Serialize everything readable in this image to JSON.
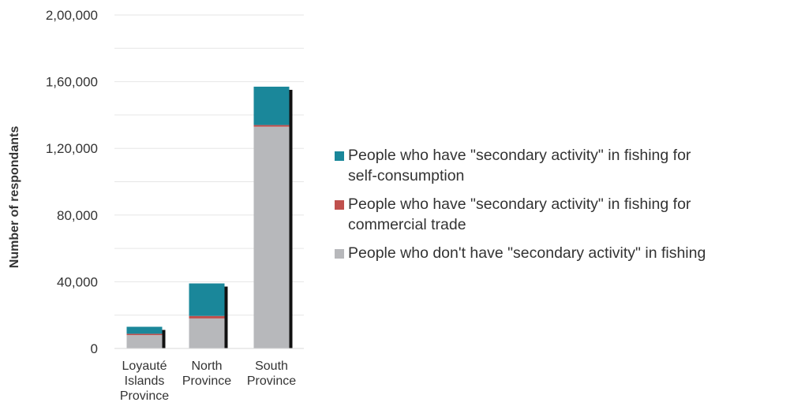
{
  "chart_data": {
    "type": "bar",
    "stacked": true,
    "categories": [
      [
        "Loyauté",
        "Islands",
        "Province"
      ],
      [
        "North",
        "Province"
      ],
      [
        "South",
        "Province"
      ]
    ],
    "series": [
      {
        "name": "People who don't have \"secondary activity\" in fishing",
        "color": "#b7b8bb",
        "values": [
          8000,
          18000,
          133000
        ]
      },
      {
        "name": "People who have \"secondary activity\" in fishing for commercial trade",
        "color": "#c0504d",
        "values": [
          800,
          1500,
          1000
        ]
      },
      {
        "name": "People who have \"secondary activity\" in fishing for self-consumption",
        "color": "#1a879a",
        "values": [
          4200,
          19500,
          23000
        ]
      }
    ],
    "legend_order": [
      2,
      1,
      0
    ],
    "legend_lines": [
      [
        "People who have \"secondary activity\" in fishing for",
        "self-consumption"
      ],
      [
        "People who have \"secondary activity\" in fishing for",
        "commercial trade"
      ],
      [
        "People who don't have \"secondary activity\" in fishing"
      ]
    ],
    "ylabel": "Number of respondants",
    "xlabel": "",
    "ylim": [
      0,
      200000
    ],
    "yticks": [
      0,
      40000,
      80000,
      120000,
      160000,
      200000
    ],
    "ytick_labels": [
      "0",
      "40,000",
      "80,000",
      "1,20,000",
      "1,60,000",
      "2,00,000"
    ],
    "grid": true,
    "legend_position": "right"
  }
}
